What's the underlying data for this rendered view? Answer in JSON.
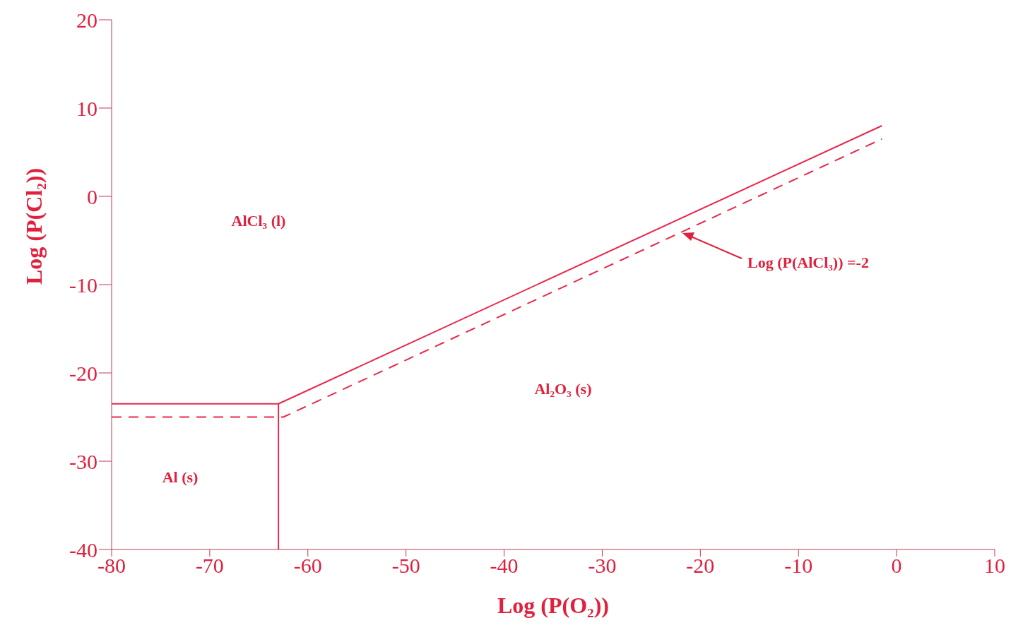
{
  "chart_data": {
    "type": "line",
    "xlabel": "Log (P(O₂))",
    "ylabel": "Log (P(Cl₂))",
    "xlim": [
      -80,
      10
    ],
    "ylim": [
      -40,
      20
    ],
    "xticks": [
      -80,
      -70,
      -60,
      -50,
      -40,
      -30,
      -20,
      -10,
      0,
      10
    ],
    "yticks": [
      -40,
      -30,
      -20,
      -10,
      0,
      10,
      20
    ],
    "series": [
      {
        "x": [
          -80,
          -63,
          -1.5
        ],
        "values": [
          -23.5,
          -23.5,
          8
        ],
        "color": "#e8284c",
        "line_style": "solid"
      },
      {
        "x": [
          -63,
          -63
        ],
        "values": [
          -40,
          -23.5
        ],
        "color": "#e8284c",
        "line_style": "solid"
      },
      {
        "x": [
          -80,
          -62.5,
          -1.5
        ],
        "values": [
          -25,
          -25,
          6.5
        ],
        "color": "#e8284c",
        "line_style": "dashed"
      }
    ],
    "annotations": [
      "AlCl₃ (l)",
      "Al₂O₃ (s)",
      "Al (s)",
      "Log (P(AlCl₃)) =-2"
    ]
  }
}
